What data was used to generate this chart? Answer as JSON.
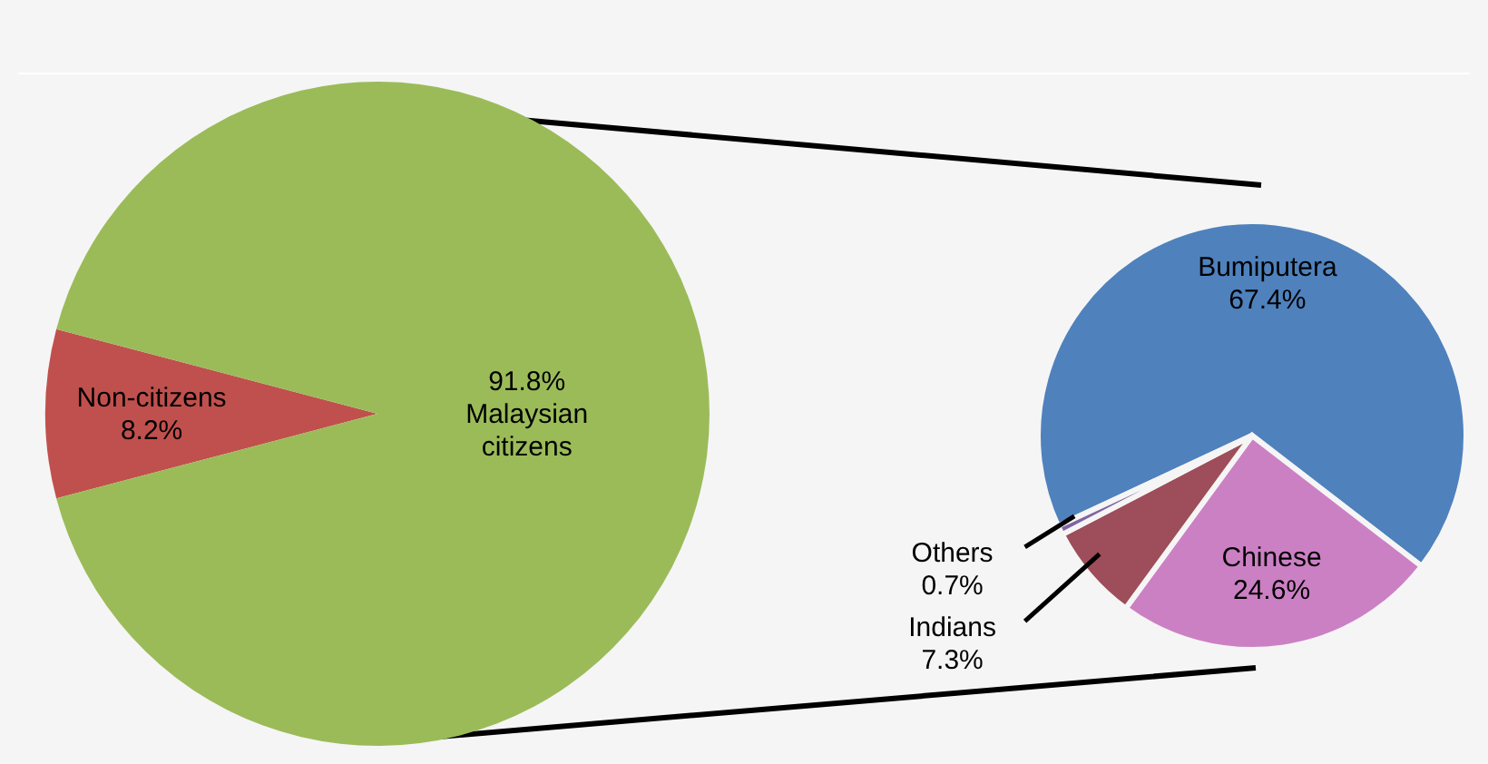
{
  "chart_data": [
    {
      "type": "pie",
      "categories": [
        "Non-citizens",
        "Malaysian citizens"
      ],
      "values": [
        8.2,
        91.8
      ],
      "colors": [
        "#c0504d",
        "#9bbb59"
      ],
      "value_labels": [
        "8.2%",
        "91.8%"
      ]
    },
    {
      "type": "pie",
      "categories": [
        "Bumiputera",
        "Chinese",
        "Indians",
        "Others"
      ],
      "values": [
        67.4,
        24.6,
        7.3,
        0.7
      ],
      "colors": [
        "#4f81bd",
        "#cc80c4",
        "#9e4d5a",
        "#8064a2"
      ],
      "value_labels": [
        "67.4%",
        "24.6%",
        "7.3%",
        "0.7%"
      ]
    }
  ]
}
